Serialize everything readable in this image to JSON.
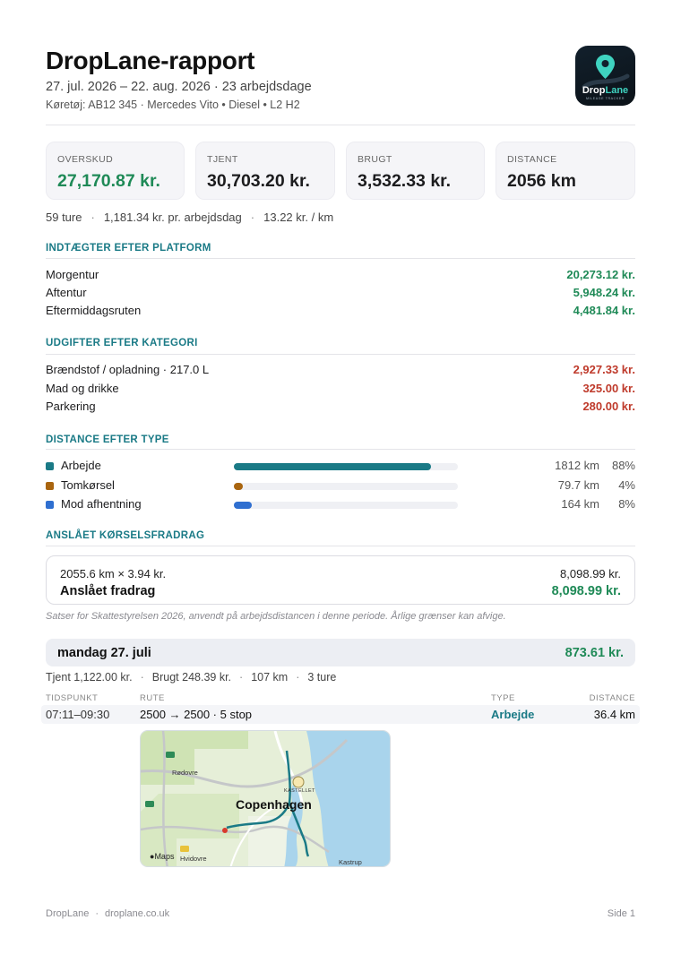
{
  "header": {
    "title": "DropLane-rapport",
    "period": "27. jul. 2026 – 22. aug. 2026 · 23 arbejdsdage",
    "vehicle": "Køretøj: AB12 345 · Mercedes Vito • Diesel • L2 H2"
  },
  "logo": {
    "text_main": "Drop",
    "text_accent": "Lane",
    "tagline": "MILEAGE TRACKER",
    "accent_color": "#3fd3c0"
  },
  "summary_cards": [
    {
      "label": "OVERSKUD",
      "value": "27,170.87 kr."
    },
    {
      "label": "TJENT",
      "value": "30,703.20 kr."
    },
    {
      "label": "BRUGT",
      "value": "3,532.33 kr."
    },
    {
      "label": "DISTANCE",
      "value": "2056 km"
    }
  ],
  "stats": {
    "trips": "59 ture",
    "per_day": "1,181.34 kr. pr. arbejdsdag",
    "per_km": "13.22 kr. / km"
  },
  "income": {
    "title": "INDTÆGTER EFTER PLATFORM",
    "rows": [
      {
        "label": "Morgentur",
        "value": "20,273.12 kr."
      },
      {
        "label": "Aftentur",
        "value": "5,948.24 kr."
      },
      {
        "label": "Eftermiddagsruten",
        "value": "4,481.84 kr."
      }
    ]
  },
  "expenses": {
    "title": "UDGIFTER EFTER KATEGORI",
    "rows": [
      {
        "label": "Brændstof / opladning  ·  217.0 L",
        "value": "2,927.33 kr."
      },
      {
        "label": "Mad og drikke",
        "value": "325.00 kr."
      },
      {
        "label": "Parkering",
        "value": "280.00 kr."
      }
    ]
  },
  "distance": {
    "title": "DISTANCE EFTER TYPE",
    "rows": [
      {
        "label": "Arbejde",
        "km": "1812 km",
        "pct": "88%",
        "fraction": 0.88,
        "color": "#1a7a86"
      },
      {
        "label": "Tomkørsel",
        "km": "79.7 km",
        "pct": "4%",
        "fraction": 0.04,
        "color": "#a9650f"
      },
      {
        "label": "Mod afhentning",
        "km": "164 km",
        "pct": "8%",
        "fraction": 0.08,
        "color": "#2f6fd0"
      }
    ]
  },
  "deduction": {
    "title": "ANSLÅET KØRSELSFRADRAG",
    "formula": "2055.6 km × 3.94 kr.",
    "formula_value": "8,098.99 kr.",
    "total_label": "Anslået fradrag",
    "total_value": "8,098.99 kr.",
    "note": "Satser for Skattestyrelsen 2026, anvendt på arbejdsdistancen i denne periode. Årlige grænser kan afvige."
  },
  "day": {
    "name": "mandag 27. juli",
    "value": "873.61 kr.",
    "earned": "Tjent 1,122.00 kr.",
    "spent": "Brugt 248.39 kr.",
    "km": "107 km",
    "trips": "3 ture",
    "columns": {
      "time": "TIDSPUNKT",
      "route": "RUTE",
      "type": "TYPE",
      "distance": "DISTANCE"
    },
    "trip": {
      "time": "07:11–09:30",
      "route": "2500 → 2500  ·  5 stop",
      "type": "Arbejde",
      "distance": "36.4 km"
    },
    "map": {
      "city": "Copenhagen",
      "labels": {
        "rodovre": "Rødovre",
        "hvidovre": "Hvidovre",
        "kastrup": "Kastrup",
        "kastellet": "KASTELLET",
        "maps": "Maps"
      }
    }
  },
  "footer": {
    "brand": "DropLane",
    "site": "droplane.co.uk",
    "page": "Side 1"
  }
}
